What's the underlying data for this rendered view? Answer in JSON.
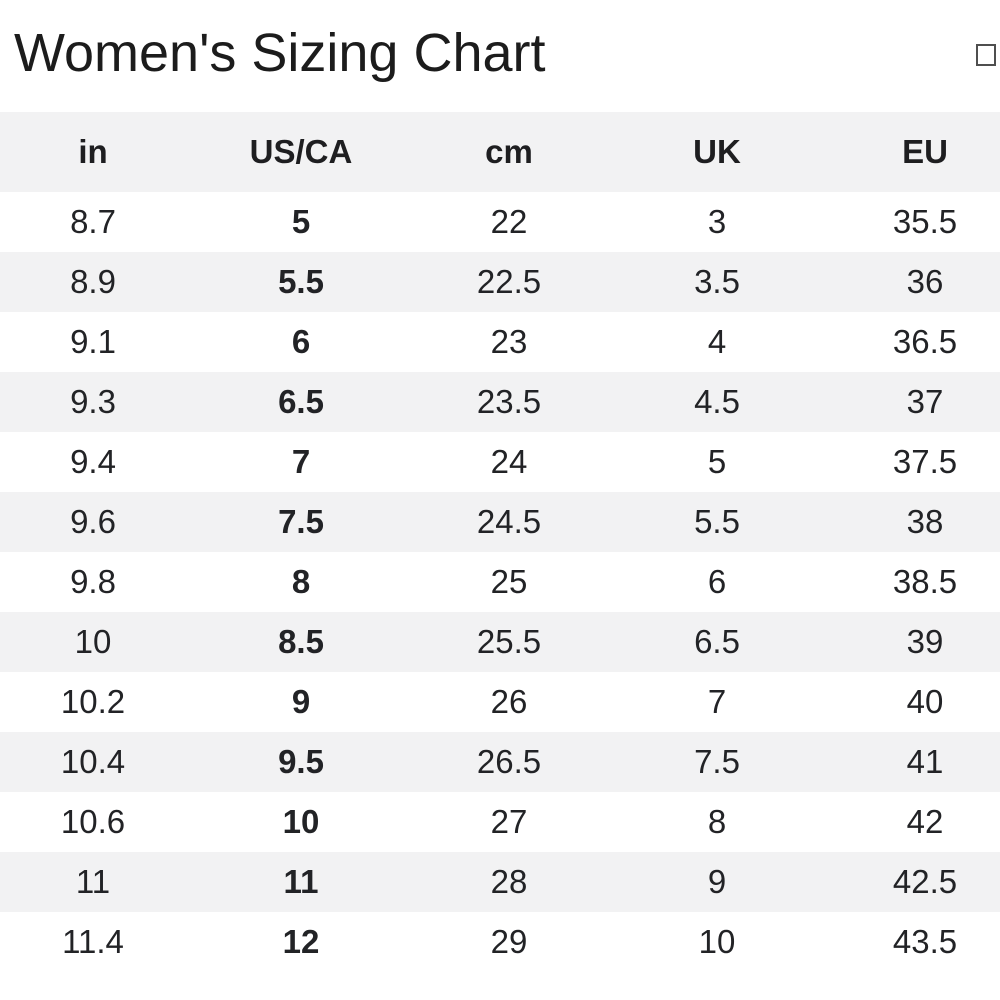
{
  "page": {
    "title": "Women's Sizing Chart"
  },
  "header_icon": {
    "name": "empty-box-glyph",
    "description": "small hollow square glyph at top right"
  },
  "table": {
    "columns": [
      "in",
      "US/CA",
      "cm",
      "UK",
      "EU"
    ],
    "column_keys": [
      "in",
      "usca",
      "cm",
      "uk",
      "eu"
    ],
    "bold_column": "US/CA",
    "rows": [
      [
        "8.7",
        "5",
        "22",
        "3",
        "35.5"
      ],
      [
        "8.9",
        "5.5",
        "22.5",
        "3.5",
        "36"
      ],
      [
        "9.1",
        "6",
        "23",
        "4",
        "36.5"
      ],
      [
        "9.3",
        "6.5",
        "23.5",
        "4.5",
        "37"
      ],
      [
        "9.4",
        "7",
        "24",
        "5",
        "37.5"
      ],
      [
        "9.6",
        "7.5",
        "24.5",
        "5.5",
        "38"
      ],
      [
        "9.8",
        "8",
        "25",
        "6",
        "38.5"
      ],
      [
        "10",
        "8.5",
        "25.5",
        "6.5",
        "39"
      ],
      [
        "10.2",
        "9",
        "26",
        "7",
        "40"
      ],
      [
        "10.4",
        "9.5",
        "26.5",
        "7.5",
        "41"
      ],
      [
        "10.6",
        "10",
        "27",
        "8",
        "42"
      ],
      [
        "11",
        "11",
        "28",
        "9",
        "42.5"
      ],
      [
        "11.4",
        "12",
        "29",
        "10",
        "43.5"
      ]
    ]
  },
  "colors": {
    "background": "#ffffff",
    "stripe": "#f2f2f3",
    "text": "#222326",
    "title_text": "#1c1c1c"
  }
}
